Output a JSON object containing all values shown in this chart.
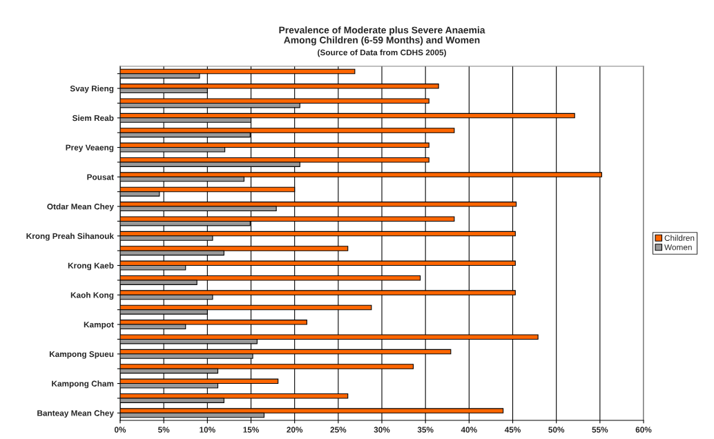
{
  "chart_data": {
    "type": "bar",
    "orientation": "horizontal",
    "title": "Prevalence of Moderate plus Severe Anaemia\nAmong Children (6-59 Months) and Women",
    "subtitle": "(Source of Data from CDHS 2005)",
    "categories": [
      null,
      "Svay Rieng",
      null,
      "Siem Reab",
      null,
      "Prey Veaeng",
      null,
      "Pousat",
      null,
      "Otdar Mean Chey",
      null,
      "Krong Preah Sihanouk",
      null,
      "Krong Kaeb",
      null,
      "Kaoh Kong",
      null,
      "Kampot",
      null,
      "Kampong Spueu",
      null,
      "Kampong Cham",
      null,
      "Banteay Mean Chey"
    ],
    "series": [
      {
        "name": "Children",
        "color": "#ff6600",
        "values": [
          26.9,
          36.5,
          35.4,
          52.1,
          38.3,
          35.4,
          35.4,
          55.2,
          20.0,
          45.4,
          38.3,
          45.3,
          26.1,
          45.3,
          34.4,
          45.3,
          28.8,
          21.4,
          47.9,
          37.9,
          33.6,
          18.1,
          26.1,
          43.9
        ]
      },
      {
        "name": "Women",
        "color": "#999999",
        "values": [
          9.1,
          10.0,
          20.6,
          15.0,
          14.9,
          12.0,
          20.6,
          14.2,
          4.5,
          17.9,
          14.9,
          10.6,
          11.9,
          7.5,
          8.8,
          10.6,
          10.0,
          7.5,
          15.7,
          15.2,
          11.2,
          11.2,
          11.9,
          16.5
        ]
      }
    ],
    "xlim": [
      0,
      60
    ],
    "xticks": [
      {
        "value": 0,
        "label": "0%"
      },
      {
        "value": 5,
        "label": "5%"
      },
      {
        "value": 10,
        "label": "10%"
      },
      {
        "value": 15,
        "label": "15%"
      },
      {
        "value": 20,
        "label": "20%"
      },
      {
        "value": 25,
        "label": "25%"
      },
      {
        "value": 30,
        "label": "30%"
      },
      {
        "value": 35,
        "label": "35%"
      },
      {
        "value": 40,
        "label": "40%"
      },
      {
        "value": 45,
        "label": "45%"
      },
      {
        "value": 50,
        "label": "50%"
      },
      {
        "value": 55,
        "label": "55%"
      },
      {
        "value": 60,
        "label": "60%"
      }
    ],
    "grid": "x",
    "legend": "right"
  }
}
